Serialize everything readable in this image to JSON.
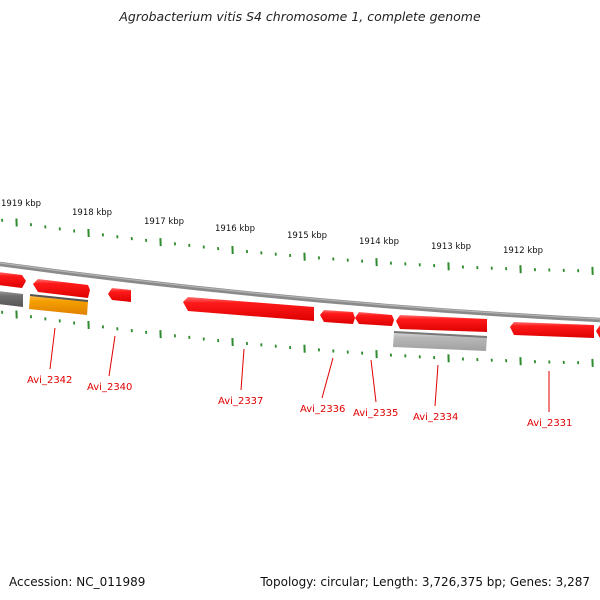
{
  "title": "Agrobacterium vitis S4 chromosome 1, complete genome",
  "footer": {
    "accession": "Accession: NC_011989",
    "topology": "Topology: circular; Length: 3,726,375 bp; Genes: 3,287"
  },
  "colors": {
    "gene_red": "#ee0000",
    "gene_orange": "#f09000",
    "gene_gray": "#a0a0a0",
    "gene_dark_gray": "#666666",
    "backbone": "#808080",
    "tick_green": "#2e8b2e",
    "label_red": "#e00000"
  },
  "kbp_labels": [
    "1919 kbp",
    "1918 kbp",
    "1917 kbp",
    "1916 kbp",
    "1915 kbp",
    "1914 kbp",
    "1913 kbp",
    "1912 kbp"
  ],
  "gene_labels": [
    "Avi_2342",
    "Avi_2340",
    "Avi_2337",
    "Avi_2336",
    "Avi_2335",
    "Avi_2334",
    "Avi_2331"
  ]
}
